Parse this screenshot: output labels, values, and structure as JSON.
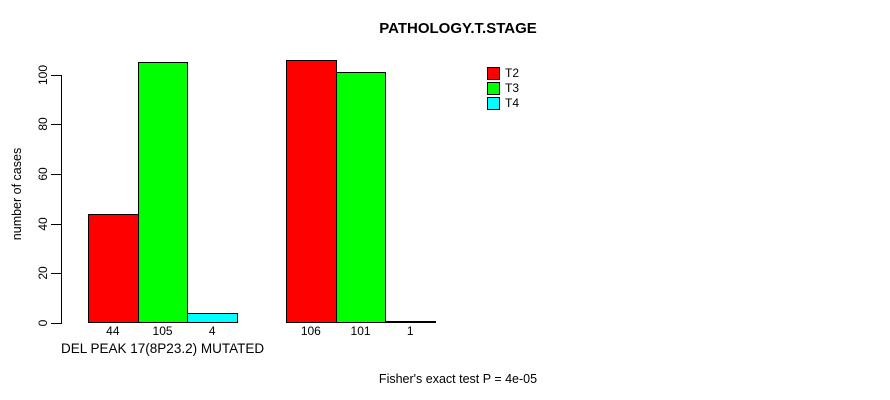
{
  "chart_data": {
    "type": "bar",
    "title": "PATHOLOGY.T.STAGE",
    "xlabel": "",
    "ylabel": "number of cases",
    "ylim": [
      0,
      100
    ],
    "yticks": [
      0,
      20,
      40,
      60,
      80,
      100
    ],
    "grid": false,
    "legend_position": "top-right",
    "series": [
      {
        "name": "T2",
        "color": "#ff0000"
      },
      {
        "name": "T3",
        "color": "#00ff00"
      },
      {
        "name": "T4",
        "color": "#00ffff"
      }
    ],
    "groups": [
      {
        "label": "DEL PEAK 17(8P23.2) MUTATED",
        "values": [
          44,
          105,
          4
        ]
      },
      {
        "label": "",
        "values": [
          106,
          101,
          1
        ]
      }
    ],
    "bar_value_labels": [
      [
        "44",
        "105",
        "4"
      ],
      [
        "106",
        "101",
        "1"
      ]
    ],
    "annotation": "Fisher's exact test P = 4e-05"
  },
  "colors": {
    "background": "#ffffff",
    "axis": "#000000",
    "text": "#000000",
    "bar_border": "#000000"
  }
}
